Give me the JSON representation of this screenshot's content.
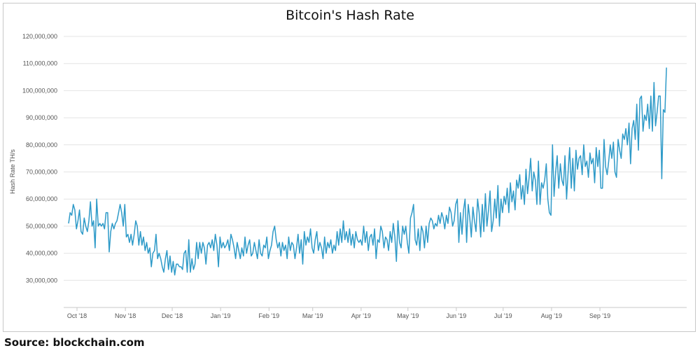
{
  "chart_data": {
    "type": "line",
    "title": "Bitcoin's Hash Rate",
    "xlabel": "",
    "ylabel": "Hash Rate TH/s",
    "ylim": [
      20000000,
      120000000
    ],
    "y_ticks": [
      30000000,
      40000000,
      50000000,
      60000000,
      70000000,
      80000000,
      90000000,
      100000000,
      110000000,
      120000000
    ],
    "y_tick_labels": [
      "30,000,000",
      "40,000,000",
      "50,000,000",
      "60,000,000",
      "70,000,000",
      "80,000,000",
      "90,000,000",
      "100,000,000",
      "110,000,000",
      "120,000,000"
    ],
    "x_tick_labels": [
      "Oct '18",
      "Nov '18",
      "Dec '18",
      "Jan '19",
      "Feb '19",
      "Mar '19",
      "Apr '19",
      "May '19",
      "Jun '19",
      "Jul '19",
      "Aug '19",
      "Sep '19"
    ],
    "x_start": "2018-10-01",
    "x_step_days": 1,
    "grid": true,
    "line_color": "#2e9ac8",
    "series": [
      {
        "name": "",
        "values": [
          51000000,
          55000000,
          54000000,
          58000000,
          56000000,
          49000000,
          52000000,
          56000000,
          48000000,
          47000000,
          53000000,
          50000000,
          48000000,
          52000000,
          59000000,
          50000000,
          52000000,
          42000000,
          60000000,
          50000000,
          51000000,
          50000000,
          51000000,
          49000000,
          55000000,
          55000000,
          40500000,
          48000000,
          51000000,
          49000000,
          51000000,
          52000000,
          55000000,
          58000000,
          55000000,
          50000000,
          58000000,
          46000000,
          47000000,
          44000000,
          47000000,
          43000000,
          47000000,
          52000000,
          50000000,
          43000000,
          48000000,
          43000000,
          46000000,
          41000000,
          44000000,
          40000000,
          42000000,
          35000000,
          40000000,
          41000000,
          47000000,
          38000000,
          40000000,
          38000000,
          35000000,
          33000000,
          38000000,
          41000000,
          34000000,
          39000000,
          33000000,
          37000000,
          32000000,
          36000000,
          36000000,
          35000000,
          35000000,
          34000000,
          40000000,
          41000000,
          33000000,
          45000000,
          33000000,
          38000000,
          34000000,
          36000000,
          44000000,
          38000000,
          44000000,
          40000000,
          44000000,
          42000000,
          36000000,
          43000000,
          44000000,
          42000000,
          45000000,
          41000000,
          47000000,
          43000000,
          35000000,
          46000000,
          42000000,
          44000000,
          42000000,
          43000000,
          45000000,
          41000000,
          47000000,
          45000000,
          42000000,
          38000000,
          44000000,
          41000000,
          38000000,
          42000000,
          39000000,
          46000000,
          40000000,
          43000000,
          45000000,
          39000000,
          40000000,
          44000000,
          41000000,
          38000000,
          45000000,
          40000000,
          39000000,
          43000000,
          42000000,
          46000000,
          38000000,
          41000000,
          43000000,
          48000000,
          50000000,
          45000000,
          42000000,
          44000000,
          39000000,
          44000000,
          41000000,
          43000000,
          38000000,
          46000000,
          41000000,
          44000000,
          43000000,
          38000000,
          42000000,
          47000000,
          40000000,
          45000000,
          36000000,
          48000000,
          43000000,
          46000000,
          44000000,
          49000000,
          42000000,
          40000000,
          45000000,
          48000000,
          41000000,
          44000000,
          42000000,
          38000000,
          46000000,
          40000000,
          44000000,
          42000000,
          45000000,
          40000000,
          43000000,
          41000000,
          48000000,
          43000000,
          49000000,
          44000000,
          52000000,
          45000000,
          48000000,
          44000000,
          49000000,
          43000000,
          47000000,
          42000000,
          48000000,
          45000000,
          44000000,
          45000000,
          43000000,
          50000000,
          44000000,
          48000000,
          41000000,
          46000000,
          47000000,
          43000000,
          49000000,
          38000000,
          45000000,
          44000000,
          50000000,
          48000000,
          42000000,
          46000000,
          45000000,
          41000000,
          48000000,
          44000000,
          51000000,
          46000000,
          37000000,
          52000000,
          44000000,
          42000000,
          50000000,
          47000000,
          50000000,
          44000000,
          40000000,
          53000000,
          55000000,
          58000000,
          45000000,
          43000000,
          49000000,
          41000000,
          50000000,
          48000000,
          42000000,
          50000000,
          44000000,
          51000000,
          53000000,
          52000000,
          49000000,
          51000000,
          50000000,
          54000000,
          51000000,
          55000000,
          53000000,
          49000000,
          54000000,
          51000000,
          57000000,
          55000000,
          50000000,
          52000000,
          58000000,
          60000000,
          44000000,
          55000000,
          47000000,
          56000000,
          60000000,
          44000000,
          58000000,
          53000000,
          46000000,
          57000000,
          52000000,
          48000000,
          60000000,
          55000000,
          46000000,
          58000000,
          48000000,
          62000000,
          50000000,
          56000000,
          63000000,
          48000000,
          52000000,
          60000000,
          53000000,
          65000000,
          50000000,
          60000000,
          55000000,
          61000000,
          58000000,
          64000000,
          55000000,
          66000000,
          59000000,
          63000000,
          56000000,
          67000000,
          64000000,
          69000000,
          60000000,
          65000000,
          58000000,
          71000000,
          62000000,
          68000000,
          75000000,
          63000000,
          70000000,
          67000000,
          58000000,
          74000000,
          58000000,
          66000000,
          64000000,
          67000000,
          73000000,
          60000000,
          55000000,
          54000000,
          80000000,
          61000000,
          70000000,
          76000000,
          64000000,
          73000000,
          67000000,
          65000000,
          76000000,
          60000000,
          70000000,
          79000000,
          64000000,
          75000000,
          63000000,
          78000000,
          71000000,
          75000000,
          76000000,
          69000000,
          80000000,
          72000000,
          74000000,
          68000000,
          77000000,
          73000000,
          75000000,
          66000000,
          79000000,
          72000000,
          78000000,
          64000000,
          64000000,
          82000000,
          72000000,
          69000000,
          74000000,
          80000000,
          75000000,
          81000000,
          70000000,
          68000000,
          82000000,
          78000000,
          75000000,
          84000000,
          82000000,
          86000000,
          80000000,
          88000000,
          73000000,
          86000000,
          89000000,
          82000000,
          95000000,
          78000000,
          97000000,
          98000000,
          85000000,
          91000000,
          89000000,
          95000000,
          86000000,
          98000000,
          85000000,
          103000000,
          87000000,
          92000000,
          98000000,
          98000000,
          67500000,
          93000000,
          92000000,
          108500000
        ]
      }
    ]
  },
  "source": "Source: blockchain.com"
}
